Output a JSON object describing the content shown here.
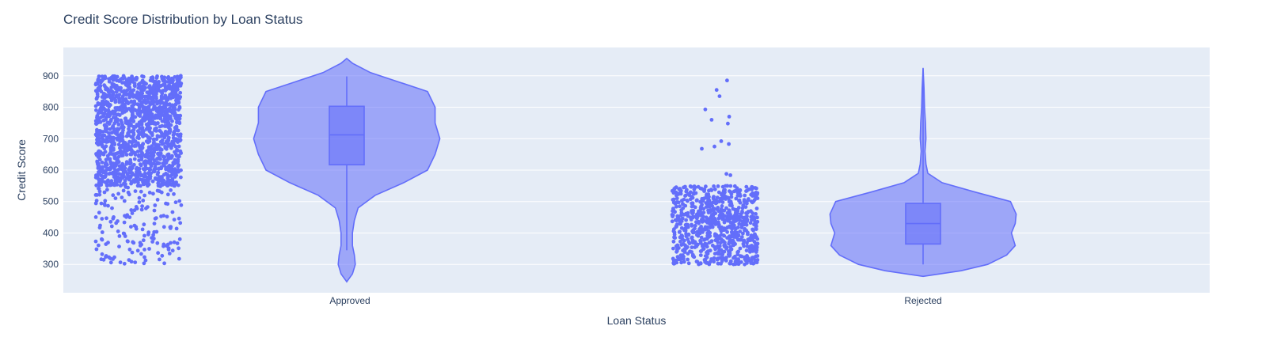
{
  "chart_data": {
    "type": "violin",
    "title": "Credit Score Distribution by Loan Status",
    "xlabel": "Loan Status",
    "ylabel": "Credit Score",
    "categories": [
      "Approved",
      "Rejected"
    ],
    "ylim": [
      210,
      990
    ],
    "yticks": [
      300,
      400,
      500,
      600,
      700,
      800,
      900
    ],
    "grid": true,
    "legend": "none",
    "colors": {
      "plot_bg": "#e5ecf6",
      "grid": "#ffffff",
      "violin_fill": "#636efa",
      "violin_line": "#636efa",
      "points": "#636efa",
      "text": "#2a3f5f"
    },
    "groups": [
      {
        "category": "Approved",
        "box": {
          "q1": 617,
          "median": 712,
          "q3": 803,
          "whisker_low": 345,
          "whisker_high": 898
        },
        "range": [
          245,
          955
        ],
        "density": [
          [
            245,
            0.0
          ],
          [
            270,
            0.06
          ],
          [
            300,
            0.09
          ],
          [
            330,
            0.08
          ],
          [
            360,
            0.06
          ],
          [
            400,
            0.06
          ],
          [
            440,
            0.08
          ],
          [
            480,
            0.12
          ],
          [
            520,
            0.3
          ],
          [
            560,
            0.6
          ],
          [
            600,
            0.85
          ],
          [
            650,
            0.93
          ],
          [
            700,
            0.98
          ],
          [
            750,
            0.93
          ],
          [
            800,
            0.93
          ],
          [
            850,
            0.85
          ],
          [
            880,
            0.55
          ],
          [
            910,
            0.25
          ],
          [
            940,
            0.06
          ],
          [
            955,
            0.0
          ]
        ],
        "points_dense_range": [
          550,
          900
        ],
        "points_sparse_range": [
          300,
          550
        ]
      },
      {
        "category": "Rejected",
        "box": {
          "q1": 365,
          "median": 430,
          "q3": 494,
          "whisker_low": 300,
          "whisker_high": 922
        },
        "range": [
          262,
          925
        ],
        "density": [
          [
            262,
            0.0
          ],
          [
            280,
            0.4
          ],
          [
            300,
            0.68
          ],
          [
            330,
            0.88
          ],
          [
            360,
            0.97
          ],
          [
            400,
            0.93
          ],
          [
            430,
            0.97
          ],
          [
            460,
            0.98
          ],
          [
            500,
            0.92
          ],
          [
            530,
            0.55
          ],
          [
            560,
            0.2
          ],
          [
            590,
            0.05
          ],
          [
            620,
            0.03
          ],
          [
            660,
            0.02
          ],
          [
            700,
            0.03
          ],
          [
            750,
            0.025
          ],
          [
            800,
            0.015
          ],
          [
            860,
            0.01
          ],
          [
            925,
            0.0
          ]
        ],
        "points_dense_range": [
          300,
          550
        ],
        "outliers": [
          885,
          855,
          835,
          793,
          770,
          760,
          748,
          692,
          683,
          675,
          668,
          588,
          584
        ]
      }
    ]
  }
}
